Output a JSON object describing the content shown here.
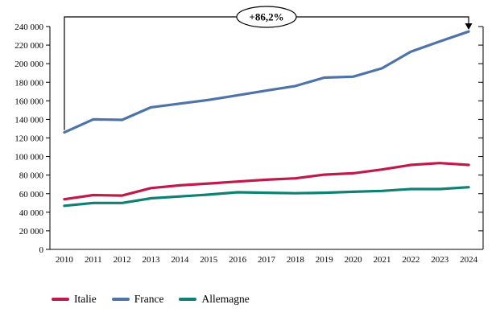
{
  "chart_data": {
    "type": "line",
    "x": [
      "2010",
      "2011",
      "2012",
      "2013",
      "2014",
      "2015",
      "2016",
      "2017",
      "2018",
      "2019",
      "2020",
      "2021",
      "2022",
      "2023",
      "2024"
    ],
    "series": [
      {
        "name": "Italie",
        "color": "#c01a4b",
        "values": [
          54000,
          58500,
          58000,
          66000,
          69000,
          71000,
          73000,
          75000,
          76500,
          80500,
          82000,
          86000,
          91000,
          93000,
          91000
        ]
      },
      {
        "name": "France",
        "color": "#4e73a8",
        "values": [
          126000,
          140000,
          139500,
          153000,
          157000,
          161000,
          166000,
          171000,
          176000,
          185000,
          186000,
          195000,
          213000,
          224000,
          234600
        ]
      },
      {
        "name": "Allemagne",
        "color": "#0f8174",
        "values": [
          47000,
          50000,
          50000,
          55000,
          57000,
          59000,
          61500,
          61000,
          60500,
          61000,
          62000,
          63000,
          65000,
          65000,
          67000
        ]
      }
    ],
    "title": "",
    "xlabel": "",
    "ylabel": "",
    "ylim": [
      0,
      240000
    ],
    "ytick_step": 20000,
    "ytick_labels": [
      "0",
      "20 000",
      "40 000",
      "60 000",
      "80 000",
      "100 000",
      "120 000",
      "140 000",
      "160 000",
      "180 000",
      "200 000",
      "220 000",
      "240 000"
    ],
    "grid": false,
    "legend_position": "bottom",
    "axis_color": "#000000"
  },
  "annotation": {
    "label": "+86,2%",
    "series": "France",
    "from_x": "2010",
    "to_x": "2024"
  }
}
